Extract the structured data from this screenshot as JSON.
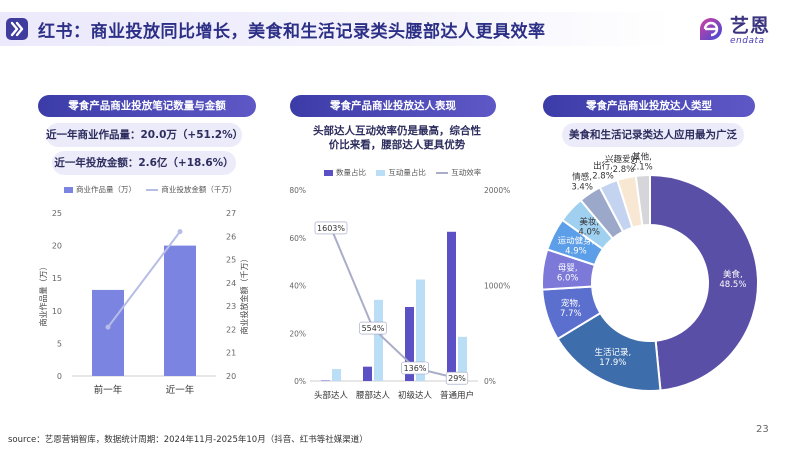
{
  "header": {
    "title": "红书：商业投放同比增长，美食和生活记录类头腰部达人更具效率",
    "logo_cn": "艺恩",
    "logo_en": "endata"
  },
  "panels": {
    "left": {
      "subtitle": "零食产品商业投放笔记数量与金额",
      "stat1": "近一年商业作品量：20.0万（+51.2%）",
      "stat2": "近一年投放金额：2.6亿（+18.6%）"
    },
    "middle": {
      "subtitle": "零食产品商业投放达人表现",
      "note_line1": "头部达人互动效率仍是最高，综合性",
      "note_line2": "价比来看，腰部达人更具优势"
    },
    "right": {
      "subtitle": "零食产品商业投放达人类型",
      "note": "美食和生活记录类达人应用最为广泛"
    }
  },
  "colors": {
    "brand": "#3c3ca8",
    "bar_primary": "#7b84e0",
    "line": "#b7bde6",
    "mid_bar_dark": "#5b50c4",
    "mid_bar_light": "#b9def6",
    "mid_line": "#a9adc7"
  },
  "chart_data": [
    {
      "type": "bar",
      "title": "零食产品商业投放笔记数量与金额",
      "categories": [
        "前一年",
        "近一年"
      ],
      "series": [
        {
          "name": "商业作品量（万）",
          "kind": "bar",
          "axis": "left",
          "values": [
            13.2,
            20.0
          ]
        },
        {
          "name": "商业投放金额（千万）",
          "kind": "line",
          "axis": "right",
          "values": [
            22.1,
            26.2
          ]
        }
      ],
      "ylabel": "商业作品量（万）",
      "y2label": "商业投放金额（千万）",
      "ylim": [
        0,
        25
      ],
      "yticks": [
        "0",
        "5",
        "10",
        "15",
        "20",
        "25"
      ],
      "y2lim": [
        20,
        27
      ],
      "y2ticks": [
        "20",
        "21",
        "22",
        "23",
        "24",
        "25",
        "26",
        "27"
      ],
      "legend": "top"
    },
    {
      "type": "bar",
      "title": "零食产品商业投放达人表现",
      "categories": [
        "头部达人",
        "腰部达人",
        "初级达人",
        "普通用户"
      ],
      "series": [
        {
          "name": "数量占比",
          "kind": "bar",
          "axis": "left",
          "values": [
            0.2,
            6.0,
            31.0,
            62.5
          ]
        },
        {
          "name": "互动量占比",
          "kind": "bar",
          "axis": "left",
          "values": [
            5.0,
            34.0,
            42.5,
            18.5
          ]
        },
        {
          "name": "互动效率",
          "kind": "line",
          "axis": "right",
          "values": [
            1603,
            554,
            136,
            29
          ],
          "labels": [
            "1603%",
            "554%",
            "136%",
            "29%"
          ]
        }
      ],
      "ylim": [
        0,
        80
      ],
      "yticks": [
        "0%",
        "20%",
        "40%",
        "60%",
        "80%"
      ],
      "y2lim": [
        0,
        2000
      ],
      "y2ticks": [
        "0%",
        "1000%",
        "2000%"
      ],
      "legend": "top"
    },
    {
      "type": "pie",
      "title": "零食产品商业投放达人类型",
      "donut": true,
      "slices": [
        {
          "label": "美食",
          "value": 48.5,
          "text": "美食,\n48.5%",
          "color": "#5a4fa6"
        },
        {
          "label": "生活记录",
          "value": 17.9,
          "text": "生活记录,\n17.9%",
          "color": "#3d6dab"
        },
        {
          "label": "宠物",
          "value": 7.7,
          "text": "宠物,\n7.7%",
          "color": "#5b6fcf"
        },
        {
          "label": "母婴",
          "value": 6.0,
          "text": "母婴,\n6.0%",
          "color": "#7c79d9"
        },
        {
          "label": "运动健身",
          "value": 4.9,
          "text": "运动健身,\n4.9%",
          "color": "#5c9ee8"
        },
        {
          "label": "美妆",
          "value": 4.0,
          "text": "美妆,\n4.0%",
          "color": "#9fd0ef"
        },
        {
          "label": "情感",
          "value": 3.4,
          "text": "情感,\n3.4%",
          "color": "#9ba8c9"
        },
        {
          "label": "出行",
          "value": 2.8,
          "text": "出行,\n2.8%",
          "color": "#c4d4f0"
        },
        {
          "label": "兴趣爱好",
          "value": 2.8,
          "text": "兴趣爱好,\n2.8%",
          "color": "#f7e7d3"
        },
        {
          "label": "其他",
          "value": 2.1,
          "text": "其他,\n2.1%",
          "color": "#d6d6da"
        }
      ]
    }
  ],
  "footer": {
    "source": "source：艺恩营销智库，数据统计周期：2024年11月-2025年10月（抖音、红书等社媒渠道）",
    "page": "23"
  }
}
